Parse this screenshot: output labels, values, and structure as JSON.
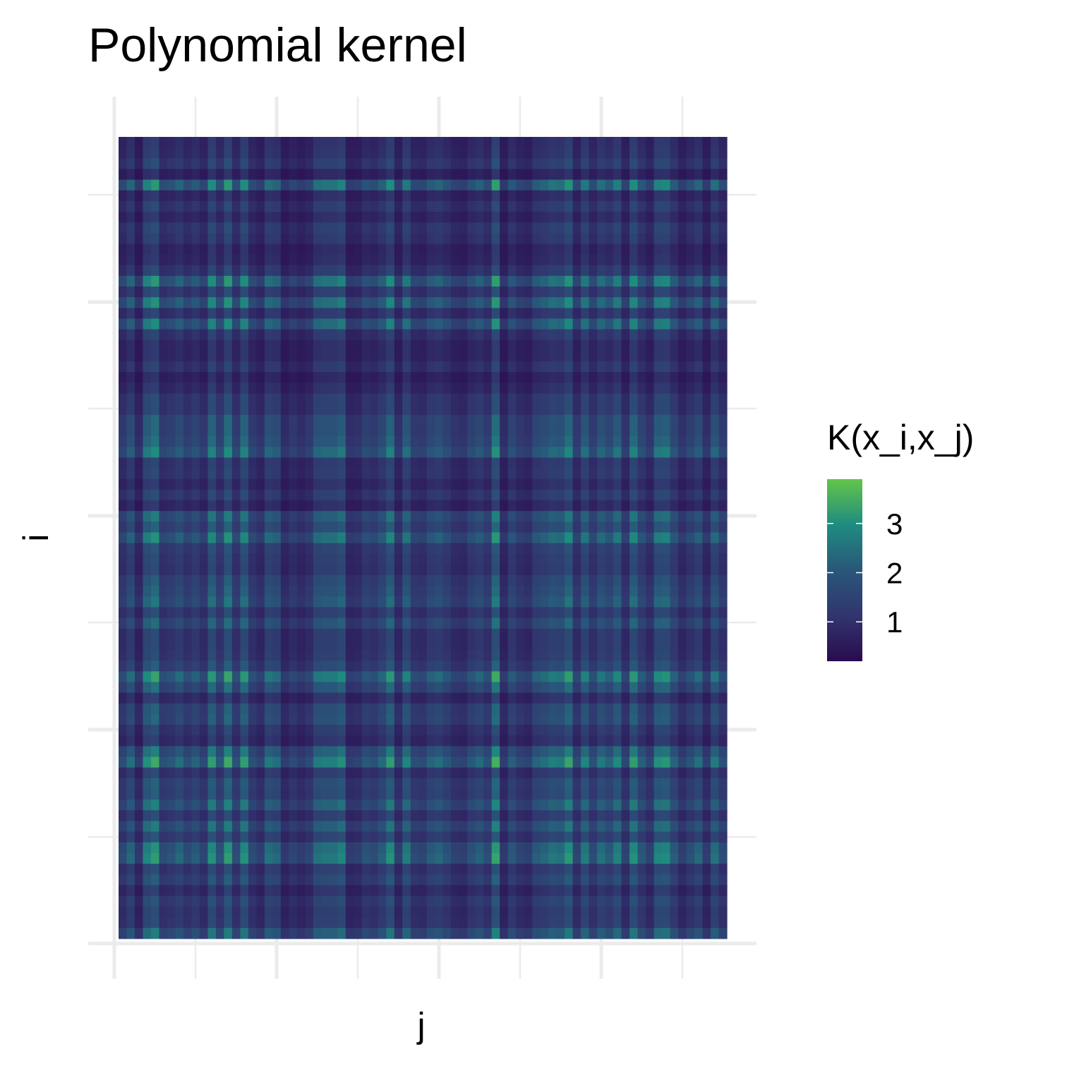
{
  "chart_data": {
    "type": "heatmap",
    "title": "Polynomial kernel",
    "xlabel": "j",
    "ylabel": "i",
    "legend": {
      "title": "K(x_i,x_j)",
      "placement": "right",
      "breaks": [
        1,
        2,
        3
      ],
      "break_labels": [
        "1",
        "2",
        "3"
      ],
      "range": [
        0.2,
        3.9
      ]
    },
    "colormap": "viridis",
    "grid": true,
    "n_rows": 75,
    "n_cols": 75,
    "row_values": [
      0.75,
      0.8,
      1.0,
      0.6,
      1.75,
      0.7,
      0.95,
      0.7,
      1.0,
      0.9,
      0.65,
      0.7,
      0.95,
      1.75,
      1.0,
      1.7,
      0.9,
      1.65,
      0.9,
      0.7,
      0.7,
      0.9,
      0.6,
      0.75,
      1.0,
      1.0,
      1.3,
      1.3,
      1.4,
      1.65,
      0.9,
      0.95,
      0.75,
      1.0,
      0.7,
      1.5,
      1.25,
      1.7,
      1.1,
      1.0,
      0.95,
      1.2,
      1.3,
      1.45,
      1.0,
      1.35,
      0.95,
      0.95,
      1.0,
      1.2,
      1.85,
      1.4,
      0.8,
      1.25,
      1.3,
      0.95,
      0.8,
      1.55,
      1.9,
      0.95,
      1.25,
      1.2,
      1.55,
      1.0,
      1.5,
      1.1,
      1.7,
      1.8,
      1.0,
      1.2,
      0.8,
      1.1,
      0.95,
      1.0,
      1.5
    ],
    "col_values": [
      0.95,
      1.3,
      0.7,
      1.6,
      1.8,
      1.0,
      1.1,
      1.3,
      1.0,
      1.2,
      0.9,
      1.7,
      1.1,
      1.8,
      1.0,
      1.7,
      1.0,
      0.8,
      1.4,
      1.3,
      0.7,
      0.9,
      0.75,
      0.9,
      1.4,
      1.45,
      1.45,
      1.6,
      0.75,
      0.8,
      1.1,
      1.0,
      1.25,
      1.7,
      0.8,
      1.5,
      0.95,
      0.9,
      1.2,
      1.3,
      1.1,
      0.85,
      0.8,
      1.1,
      1.25,
      1.0,
      1.85,
      0.7,
      1.15,
      0.9,
      0.8,
      1.2,
      1.3,
      1.45,
      1.4,
      1.75,
      0.9,
      1.5,
      1.0,
      1.4,
      1.2,
      1.55,
      0.85,
      1.7,
      1.15,
      0.85,
      1.6,
      1.65,
      1.2,
      0.8,
      1.05,
      1.3,
      0.75,
      1.4,
      1.0
    ],
    "value_rule": "K = row_value * col_value"
  }
}
